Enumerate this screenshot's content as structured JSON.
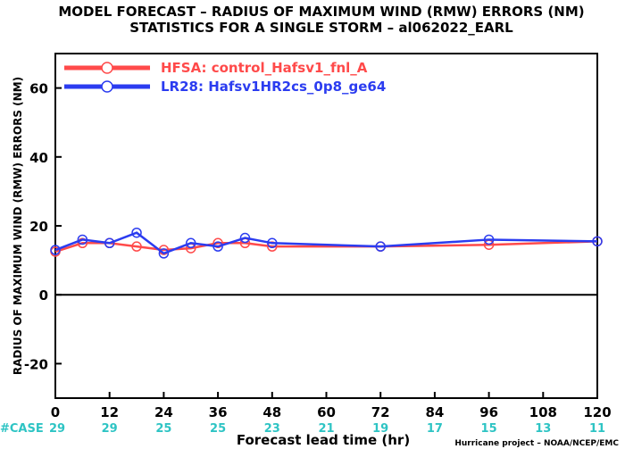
{
  "chart_data": {
    "type": "line",
    "title": "MODEL FORECAST – RADIUS OF MAXIMUM WIND (RMW) ERRORS (NM)",
    "subtitle": "STATISTICS FOR A SINGLE STORM – al062022_EARL",
    "xlabel": "Forecast lead time (hr)",
    "ylabel": "RADIUS OF MAXIMUM WIND (RMW) ERRORS (NM)",
    "xlim": [
      0,
      120
    ],
    "ylim": [
      -30,
      70
    ],
    "x_ticks": [
      0,
      12,
      24,
      36,
      48,
      60,
      72,
      84,
      96,
      108,
      120
    ],
    "y_ticks": [
      -20,
      0,
      20,
      40,
      60
    ],
    "y_tick_labels": [
      "-20",
      "0",
      "20",
      "40",
      "60"
    ],
    "grid": false,
    "legend_position": "top-left",
    "case_label": "#CASE",
    "case_counts": [
      29,
      29,
      25,
      25,
      23,
      21,
      19,
      17,
      15,
      13,
      11
    ],
    "series": [
      {
        "name": "HFSA: control_Hafsv1_fnl_A",
        "color": "#ff4a4a",
        "x": [
          0,
          6,
          12,
          18,
          24,
          30,
          36,
          42,
          48,
          72,
          96,
          120
        ],
        "y": [
          12.5,
          15.0,
          15.0,
          14.0,
          13.0,
          13.5,
          15.0,
          15.0,
          14.0,
          14.0,
          14.5,
          15.5
        ]
      },
      {
        "name": "LR28: Hafsv1HR2cs_0p8_ge64",
        "color": "#2b3cf0",
        "x": [
          0,
          6,
          12,
          18,
          24,
          30,
          36,
          42,
          48,
          72,
          96,
          120
        ],
        "y": [
          13.0,
          16.0,
          15.0,
          18.0,
          12.0,
          15.0,
          14.0,
          16.5,
          15.0,
          14.0,
          16.0,
          15.5
        ]
      }
    ]
  },
  "credit": "Hurricane project – NOAA/NCEP/EMC"
}
